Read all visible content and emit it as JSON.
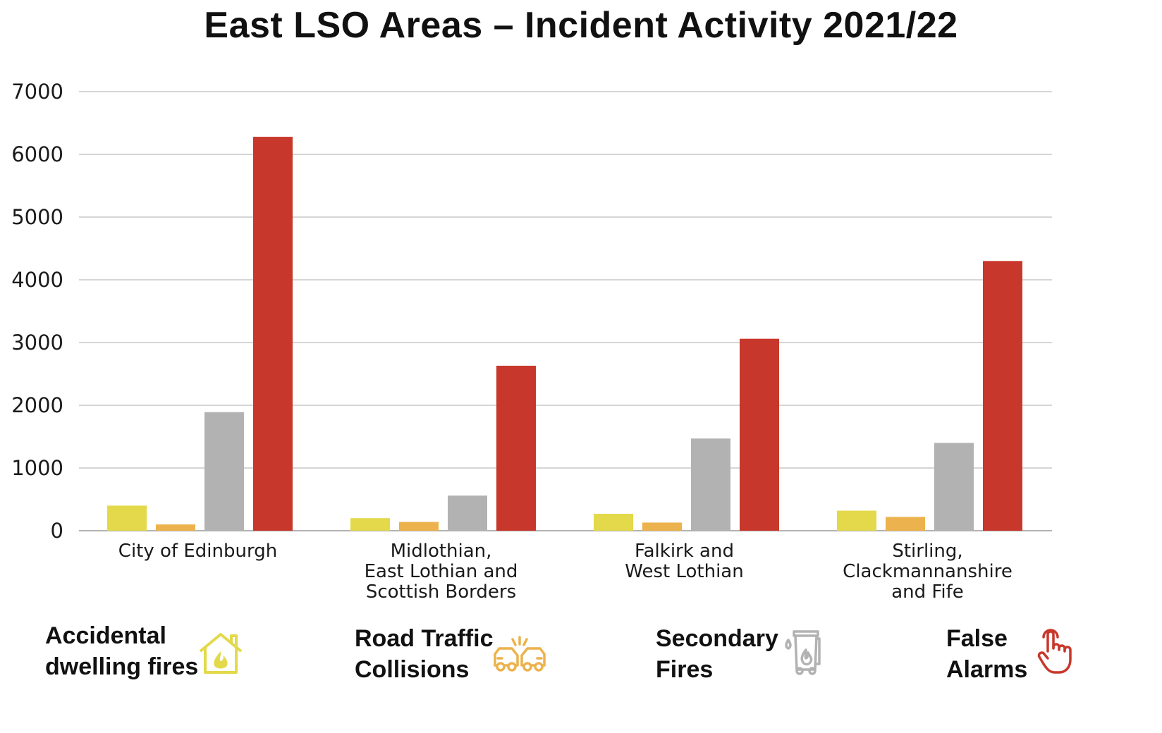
{
  "chart_data": {
    "type": "bar",
    "title": "East LSO Areas – Incident Activity 2021/22",
    "categories": [
      "City of Edinburgh",
      "Midlothian,\nEast Lothian and\nScottish Borders",
      "Falkirk and\nWest Lothian",
      "Stirling,\nClackmannanshire\nand Fife"
    ],
    "series": [
      {
        "name": "Accidental dwelling fires",
        "color": "#e3d94a",
        "values": [
          400,
          200,
          270,
          320
        ]
      },
      {
        "name": "Road Traffic Collisions",
        "color": "#ecb24d",
        "values": [
          100,
          140,
          130,
          220
        ]
      },
      {
        "name": "Secondary Fires",
        "color": "#b2b2b2",
        "values": [
          1890,
          560,
          1470,
          1400
        ]
      },
      {
        "name": "False Alarms",
        "color": "#c8372b",
        "values": [
          6280,
          2630,
          3060,
          4300
        ]
      }
    ],
    "ylim": [
      0,
      7000
    ],
    "yticks": [
      0,
      1000,
      2000,
      3000,
      4000,
      5000,
      6000,
      7000
    ],
    "grid": true,
    "legend_position": "bottom"
  },
  "legend": [
    {
      "label": "Accidental\ndwelling fires",
      "icon": "house-fire-icon",
      "color": "#e3d94a"
    },
    {
      "label": "Road Traffic\nCollisions",
      "icon": "car-collision-icon",
      "color": "#ecb24d"
    },
    {
      "label": "Secondary\nFires",
      "icon": "bin-fire-icon",
      "color": "#b2b2b2"
    },
    {
      "label": "False\nAlarms",
      "icon": "pointing-hand-icon",
      "color": "#c8372b"
    }
  ]
}
